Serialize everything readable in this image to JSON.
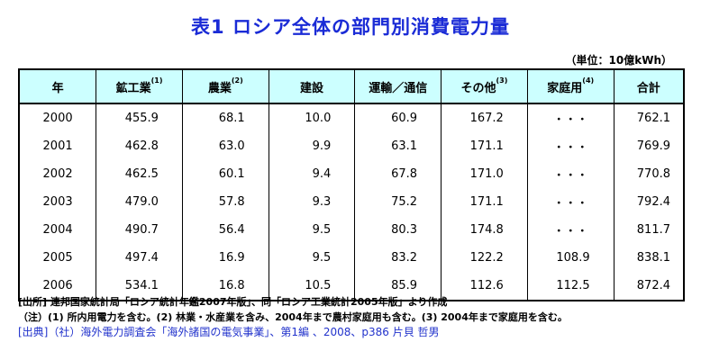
{
  "title": "表1  ロシア全体の部門別消費電力量",
  "unit": "（単位：10億kWh）",
  "table": {
    "headers": [
      {
        "label": "年",
        "sup": ""
      },
      {
        "label": "鉱工業",
        "sup": "(1)"
      },
      {
        "label": "農業",
        "sup": "(2)"
      },
      {
        "label": "建設",
        "sup": ""
      },
      {
        "label": "運輸／通信",
        "sup": ""
      },
      {
        "label": "その他",
        "sup": "(3)"
      },
      {
        "label": "家庭用",
        "sup": "(4)"
      },
      {
        "label": "合計",
        "sup": ""
      }
    ],
    "rows": [
      [
        "2000",
        "455.9",
        "68.1",
        "10.0",
        "60.9",
        "167.2",
        "・・・",
        "762.1"
      ],
      [
        "2001",
        "462.8",
        "63.0",
        "9.9",
        "63.1",
        "171.1",
        "・・・",
        "769.9"
      ],
      [
        "2002",
        "462.5",
        "60.1",
        "9.4",
        "67.8",
        "171.0",
        "・・・",
        "770.8"
      ],
      [
        "2003",
        "479.0",
        "57.8",
        "9.3",
        "75.2",
        "171.1",
        "・・・",
        "792.4"
      ],
      [
        "2004",
        "490.7",
        "56.4",
        "9.5",
        "80.3",
        "174.8",
        "・・・",
        "811.7"
      ],
      [
        "2005",
        "497.4",
        "16.9",
        "9.5",
        "83.2",
        "122.2",
        "108.9",
        "838.1"
      ],
      [
        "2006",
        "534.1",
        "16.8",
        "10.5",
        "85.9",
        "112.6",
        "112.5",
        "872.4"
      ]
    ]
  },
  "notes": {
    "line1": "[出所] 連邦国家統計局「ロシア統計年鑑2007年版」、同「ロシア工業統計2005年版」より作成",
    "line2": "（注）(1) 所内用電力を含む。(2) 林業・水産業を含み、2004年まで農村家庭用も含む。(3) 2004年まで家庭用を含む。",
    "line3": "[出典]（社）海外電力調査会「海外諸国の電気事業」、第1編 、2008、p386 片貝 哲男"
  },
  "colors": {
    "title": "#1a2bd6",
    "header_bg": "#ccffff",
    "source": "#2233cc"
  }
}
